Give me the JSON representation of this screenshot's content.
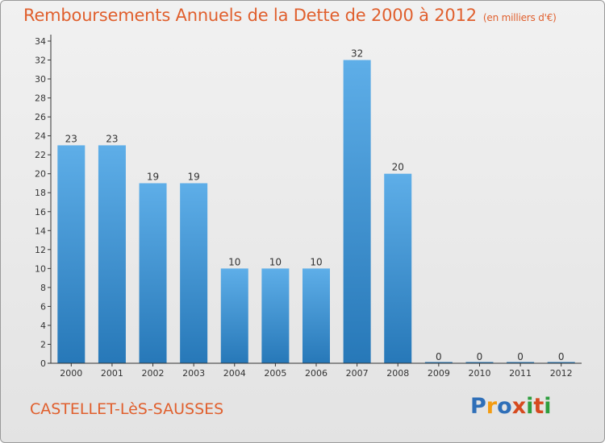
{
  "title": "Remboursements Annuels de la Dette de 2000 à 2012",
  "unit_note": "(en milliers d'€)",
  "commune": "CASTELLET-LèS-SAUSSES",
  "logo": {
    "text": "Proxiti",
    "letters": [
      "P",
      "r",
      "o",
      "x",
      "i",
      "t",
      "i"
    ],
    "colors": [
      "#2f6fb8",
      "#f39c12",
      "#2f6fb8",
      "#d64a1f",
      "#2e9e3e",
      "#d64a1f",
      "#2e9e3e"
    ]
  },
  "colors": {
    "title": "#e05f2d",
    "bar_top": "#5eaee8",
    "bar_bottom": "#2778b8",
    "axis": "#333333"
  },
  "chart_data": {
    "type": "bar",
    "categories": [
      "2000",
      "2001",
      "2002",
      "2003",
      "2004",
      "2005",
      "2006",
      "2007",
      "2008",
      "2009",
      "2010",
      "2011",
      "2012"
    ],
    "values": [
      23,
      23,
      19,
      19,
      10,
      10,
      10,
      32,
      20,
      0,
      0,
      0,
      0
    ],
    "ylim": [
      0,
      34
    ],
    "yticks": [
      0,
      2,
      4,
      6,
      8,
      10,
      12,
      14,
      16,
      18,
      20,
      22,
      24,
      26,
      28,
      30,
      32,
      34
    ],
    "grid": false,
    "legend": "none"
  }
}
